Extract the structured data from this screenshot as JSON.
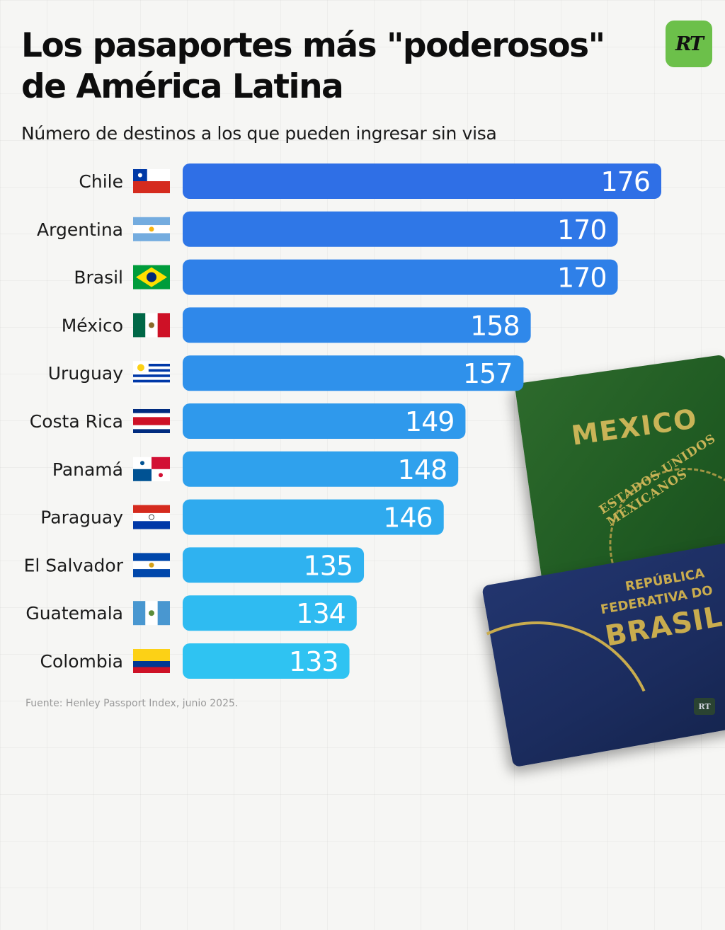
{
  "header": {
    "title_line1": "Los pasaportes más \"poderosos\"",
    "title_line2": "de América Latina",
    "logo_text": "RT"
  },
  "footer": {
    "source": "Fuente: Henley Passport Index, junio 2025.",
    "logo_text": "RT"
  },
  "passports": {
    "mexico_title": "MEXICO",
    "mexico_seal": "ESTADOS UNIDOS MEXICANOS",
    "brasil_line1": "REPÚBLICA",
    "brasil_line2": "FEDERATIVA DO",
    "brasil_line3": "BRASIL"
  },
  "colors": {
    "bar_top": "#2f6fe6",
    "bar_bottom": "#2fc3f2",
    "value_text": "#ffffff"
  },
  "chart_data": {
    "type": "bar",
    "orientation": "horizontal",
    "title": "Los pasaportes más \"poderosos\" de América Latina",
    "subtitle": "Número de destinos a los que pueden ingresar sin visa",
    "categories": [
      "Chile",
      "Argentina",
      "Brasil",
      "México",
      "Uruguay",
      "Costa Rica",
      "Panamá",
      "Paraguay",
      "El Salvador",
      "Guatemala",
      "Colombia"
    ],
    "flags": [
      "chile",
      "argentina",
      "brasil",
      "mexico",
      "uruguay",
      "costa-rica",
      "panama",
      "paraguay",
      "el-salvador",
      "guatemala",
      "colombia"
    ],
    "values": [
      176,
      170,
      170,
      158,
      157,
      149,
      148,
      146,
      135,
      134,
      133
    ],
    "xlim": [
      110,
      176
    ],
    "xlabel": "",
    "ylabel": ""
  }
}
